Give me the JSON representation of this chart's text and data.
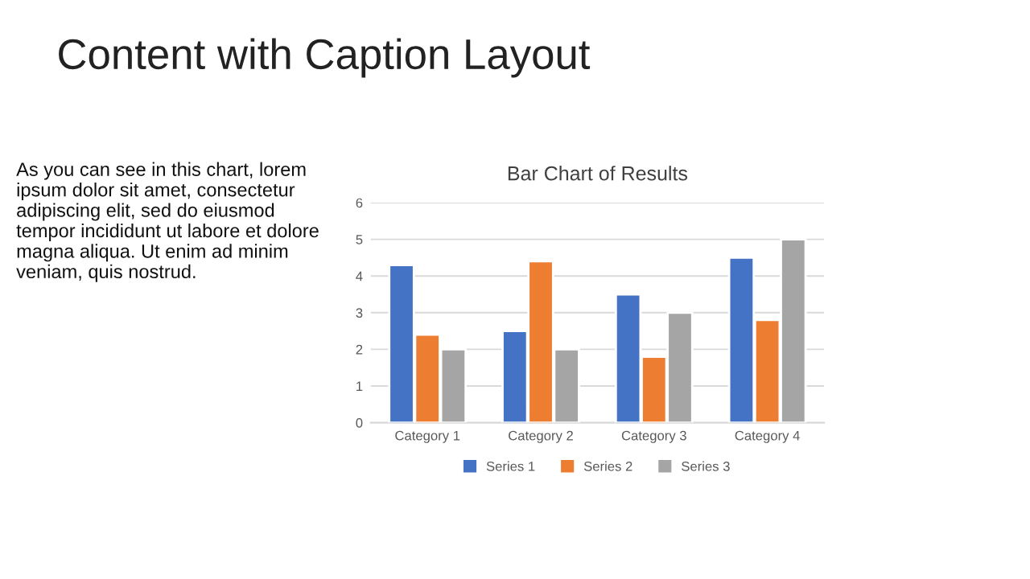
{
  "chart_data": {
    "type": "bar",
    "title": "Bar Chart of Results",
    "annotations": [
      "Content with Caption Layout",
      "As you can see in this chart, lorem ipsum dolor sit amet, consectetur adipiscing elit, sed do eiusmod tempor incididunt ut labore et dolore magna aliqua. Ut enim ad minim veniam, quis nostrud."
    ],
    "categories": [
      "Category 1",
      "Category 2",
      "Category 3",
      "Category 4"
    ],
    "series": [
      {
        "name": "Series 1",
        "color": "#4472c4",
        "values": [
          4.3,
          2.5,
          3.5,
          4.5
        ]
      },
      {
        "name": "Series 2",
        "color": "#ed7d31",
        "values": [
          2.4,
          4.4,
          1.8,
          2.8
        ]
      },
      {
        "name": "Series 3",
        "color": "#a5a5a5",
        "values": [
          2,
          2,
          3,
          5
        ]
      }
    ],
    "ylim": [
      0,
      6
    ],
    "yticks": [
      0,
      1,
      2,
      3,
      4,
      5,
      6
    ],
    "grid": "y",
    "legend": "bottom"
  }
}
